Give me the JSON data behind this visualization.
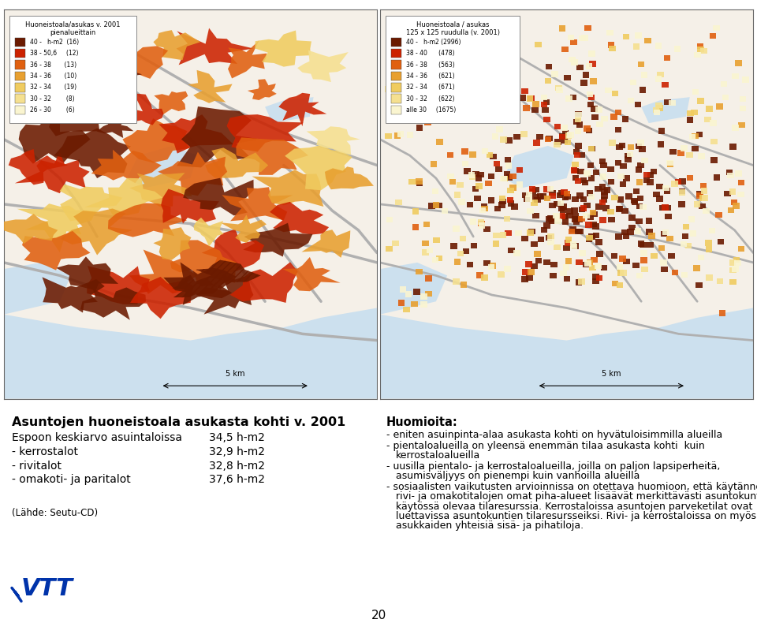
{
  "page_bg": "#ffffff",
  "map_bg_left": "#f5f0e8",
  "map_bg_right": "#f5f0e8",
  "water_color": "#cce0ee",
  "title_left": "Huoneistoala/asukas v. 2001\npienalueittain",
  "title_right": "Huoneistoala / asukas\n125 x 125 ruudulla (v. 2001)",
  "legend_left": [
    {
      "label": "40 -   h-m2  (16)",
      "color": "#6b1a00"
    },
    {
      "label": "38 - 50,6     (12)",
      "color": "#cc2200"
    },
    {
      "label": "36 - 38       (13)",
      "color": "#e06010"
    },
    {
      "label": "34 - 36       (10)",
      "color": "#e8a030"
    },
    {
      "label": "32 - 34       (19)",
      "color": "#f0cc60"
    },
    {
      "label": "30 - 32        (8)",
      "color": "#f5e090"
    },
    {
      "label": "26 - 30        (6)",
      "color": "#faf5d0"
    }
  ],
  "legend_right": [
    {
      "label": "40 -   h-m2 (2996)",
      "color": "#6b1a00"
    },
    {
      "label": "38 - 40      (478)",
      "color": "#cc2200"
    },
    {
      "label": "36 - 38      (563)",
      "color": "#e06010"
    },
    {
      "label": "34 - 36      (621)",
      "color": "#e8a030"
    },
    {
      "label": "32 - 34      (671)",
      "color": "#f0cc60"
    },
    {
      "label": "30 - 32      (622)",
      "color": "#f5e090"
    },
    {
      "label": "alle 30     (1675)",
      "color": "#faf5d0"
    }
  ],
  "road_color": "#b0b0b0",
  "border_color": "#666666",
  "heading_left": "Asuntojen huoneistoala asukasta kohti v. 2001",
  "stats": [
    {
      "label": "Espoon keskiarvo asuintaloissa",
      "value": "34,5 h-m2"
    },
    {
      "label": "- kerrostalot",
      "value": "32,9 h-m2"
    },
    {
      "label": "- rivitalot",
      "value": "32,8 h-m2"
    },
    {
      "label": "- omakoti- ja paritalot",
      "value": "37,6 h-m2"
    }
  ],
  "source": "(Lähde: Seutu-CD)",
  "heading_right": "Huomioita:",
  "bullet1": "eniten asuinpinta-alaa asukasta kohti on hyvätuloisimmilla alueilla",
  "bullet2": "pientaloalueilla on yleensä enemmän tilaa asukasta kohti  kuin\nkerrostaloalueilla",
  "bullet3": "uusilla pientalo- ja kerrostaloalueilla, joilla on paljon lapsiperheitä,\nasumisväljyys on pienempi kuin vanhoilla alueilla",
  "bullet4": "sosiaalisten vaikutusten arvioinnissa on otettava huomioon, että käytännössä\nrivi- ja omakotitalojen omat piha-alueet lisäävät merkittävästi asuntokuntien\nkäytössä olevaa tilaresurssia. Kerrostaloissa asuntojen parveketilat ovat\nluettavissa asuntokuntien tilaresursseiksi. Rivi- ja kerrostaloissa on myös\nasukkaiden yhteisiä sisä- ja pihatiloja.",
  "page_number": "20",
  "scale_label": "5 km"
}
